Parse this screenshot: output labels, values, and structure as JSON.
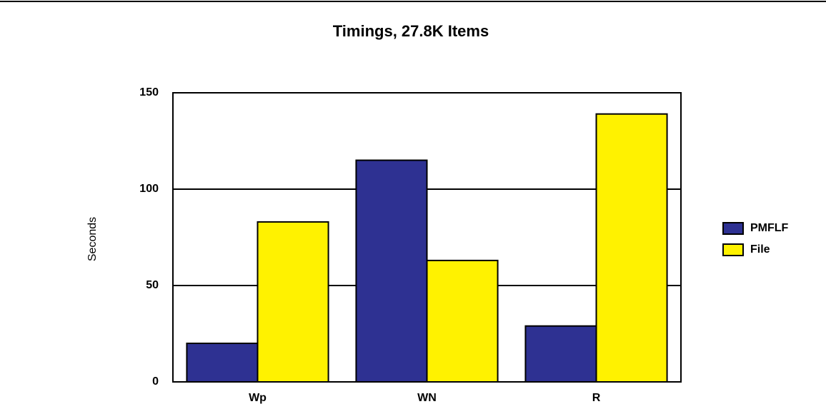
{
  "chart_data": {
    "type": "bar",
    "title": "Timings, 27.8K Items",
    "y_label": "Seconds",
    "categories": [
      "Wp",
      "WN",
      "R"
    ],
    "series": [
      {
        "name": "PMFLF",
        "color": "#2e3192",
        "values": [
          20,
          115,
          29
        ]
      },
      {
        "name": "File",
        "color": "#fff200",
        "values": [
          83,
          63,
          139
        ]
      }
    ],
    "ylim": [
      0,
      150
    ],
    "yticks": [
      0,
      50,
      100,
      150
    ],
    "grid": true,
    "legend": "right"
  }
}
